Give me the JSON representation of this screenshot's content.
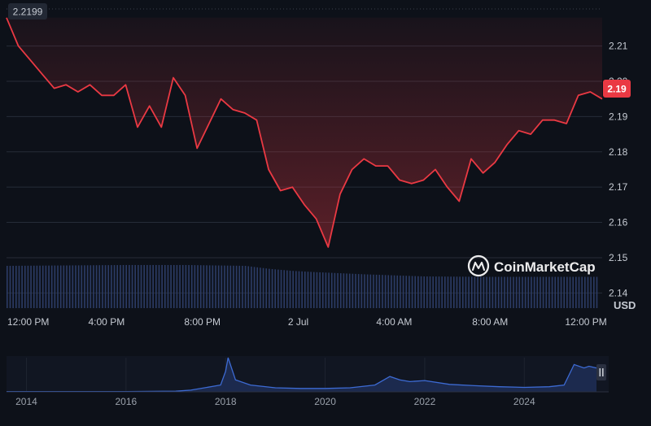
{
  "brand": {
    "name": "CoinMarketCap",
    "logo_icon": "coinmarketcap-logo-icon"
  },
  "colors": {
    "background": "#0d1119",
    "price_line": "#ea3943",
    "price_fill": "#5a1a22",
    "volume_bar": "#2c3c66",
    "navigator_line": "#3d6bd4",
    "navigator_fill": "#1c2a4e",
    "gridline": "#262c38",
    "current_price_badge": "#ea3943"
  },
  "header": {
    "opening_price_label": "2.2199"
  },
  "current_price_badge": "2.19",
  "currency_label": "USD",
  "navigator": {
    "year_labels": [
      "2014",
      "2016",
      "2018",
      "2020",
      "2022",
      "2024"
    ],
    "handle_icon": "pause-handle-icon"
  },
  "chart_data": {
    "type": "line",
    "series": [
      {
        "name": "",
        "x": [
          0,
          2,
          4,
          6,
          8,
          10,
          12,
          14,
          16,
          18,
          20,
          22,
          24,
          26,
          28,
          30,
          32,
          34,
          36,
          38,
          40,
          42,
          44,
          46,
          48,
          50,
          52,
          54,
          56,
          58,
          60,
          62,
          64,
          66,
          68,
          70,
          72,
          74,
          76,
          78,
          80,
          82,
          84,
          86,
          88,
          90,
          92,
          94,
          96,
          98,
          100
        ],
        "values": [
          2.218,
          2.21,
          2.206,
          2.202,
          2.198,
          2.199,
          2.197,
          2.199,
          2.196,
          2.196,
          2.199,
          2.187,
          2.193,
          2.187,
          2.201,
          2.196,
          2.181,
          2.188,
          2.195,
          2.192,
          2.191,
          2.189,
          2.175,
          2.169,
          2.17,
          2.165,
          2.161,
          2.153,
          2.168,
          2.175,
          2.178,
          2.176,
          2.176,
          2.172,
          2.171,
          2.172,
          2.175,
          2.17,
          2.166,
          2.178,
          2.174,
          2.177,
          2.182,
          2.186,
          2.185,
          2.189,
          2.189,
          2.188,
          2.196,
          2.197,
          2.195
        ]
      }
    ],
    "volume": {
      "x": [
        0,
        10,
        20,
        30,
        40,
        44,
        48,
        52,
        60,
        70,
        80,
        90,
        100
      ],
      "values": [
        1.0,
        1.01,
        1.02,
        1.02,
        1.0,
        0.93,
        0.88,
        0.85,
        0.8,
        0.75,
        0.74,
        0.74,
        0.74
      ]
    },
    "x_tick_labels": [
      "12:00 PM",
      "4:00 PM",
      "8:00 PM",
      "2 Jul",
      "4:00 AM",
      "8:00 AM",
      "12:00 PM"
    ],
    "x_tick_positions": [
      0,
      16.1,
      32.2,
      48.3,
      64.4,
      80.5,
      96.6
    ],
    "y_ticks": [
      2.14,
      2.15,
      2.16,
      2.17,
      2.18,
      2.19,
      2.2,
      2.21
    ],
    "ylim": [
      2.1357,
      2.2205
    ],
    "xlim": [
      0,
      100
    ],
    "grid": true,
    "history_series": {
      "x": [
        2013.6,
        2014,
        2015,
        2016,
        2017,
        2017.3,
        2017.9,
        2018.0,
        2018.05,
        2018.2,
        2018.5,
        2019,
        2019.5,
        2020,
        2020.5,
        2021.0,
        2021.3,
        2021.5,
        2021.7,
        2022,
        2022.5,
        2023,
        2023.5,
        2024,
        2024.5,
        2024.8,
        2024.9,
        2025.0,
        2025.2,
        2025.3,
        2025.45
      ],
      "values": [
        0.01,
        0.01,
        0.01,
        0.01,
        0.02,
        0.05,
        0.2,
        0.6,
        1.0,
        0.35,
        0.2,
        0.12,
        0.1,
        0.1,
        0.12,
        0.2,
        0.45,
        0.35,
        0.3,
        0.33,
        0.22,
        0.18,
        0.15,
        0.13,
        0.15,
        0.2,
        0.5,
        0.8,
        0.7,
        0.75,
        0.7
      ],
      "xlim": [
        2013.6,
        2025.45
      ]
    }
  }
}
